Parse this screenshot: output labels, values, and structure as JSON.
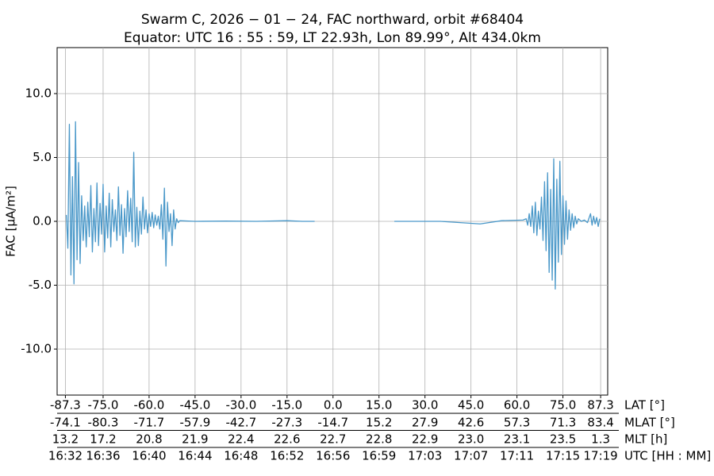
{
  "chart_data": {
    "type": "line",
    "title": "Swarm C, 2026 − 01 − 24, FAC northward, orbit #68404",
    "subtitle": "Equator: UTC 16 : 55 : 59, LT 22.93h, Lon 89.99°, Alt 434.0km",
    "ylabel": "FAC [µA/m²]",
    "xlabel": "LAT [°]",
    "xlim": [
      -90,
      89.6
    ],
    "ylim": [
      -13.6,
      13.6
    ],
    "grid": true,
    "xticks": [
      {
        "value": -87.3,
        "label": "-87.3"
      },
      {
        "value": -75,
        "label": "-75.0"
      },
      {
        "value": -60,
        "label": "-60.0"
      },
      {
        "value": -45,
        "label": "-45.0"
      },
      {
        "value": -30,
        "label": "-30.0"
      },
      {
        "value": -15,
        "label": "-15.0"
      },
      {
        "value": 0,
        "label": "0.0"
      },
      {
        "value": 15,
        "label": "15.0"
      },
      {
        "value": 30,
        "label": "30.0"
      },
      {
        "value": 45,
        "label": "45.0"
      },
      {
        "value": 60,
        "label": "60.0"
      },
      {
        "value": 75,
        "label": "75.0"
      },
      {
        "value": 87.3,
        "label": "87.3"
      }
    ],
    "yticks": [
      {
        "value": -10,
        "label": "-10.0"
      },
      {
        "value": -5,
        "label": "-5.0"
      },
      {
        "value": 0,
        "label": "0.0"
      },
      {
        "value": 5,
        "label": "5.0"
      },
      {
        "value": 10,
        "label": "10.0"
      }
    ],
    "x_rows": [
      {
        "label": "MLAT [°]",
        "ticks": [
          "-74.1",
          "-80.3",
          "-71.7",
          "-57.9",
          "-42.7",
          "-27.3",
          "-14.7",
          "15.2",
          "27.9",
          "42.6",
          "57.3",
          "71.3",
          "83.4"
        ]
      },
      {
        "label": "MLT [h]",
        "ticks": [
          "13.2",
          "17.2",
          "20.8",
          "21.9",
          "22.4",
          "22.6",
          "22.7",
          "22.8",
          "22.9",
          "23.0",
          "23.1",
          "23.5",
          "1.3"
        ]
      },
      {
        "label": "UTC [HH : MM]",
        "ticks": [
          "16:32",
          "16:36",
          "16:40",
          "16:44",
          "16:48",
          "16:52",
          "16:56",
          "16:59",
          "17:03",
          "17:07",
          "17:11",
          "17:15",
          "17:19"
        ]
      }
    ],
    "x": [
      -87.0,
      -86.5,
      -86.0,
      -85.5,
      -85.0,
      -84.5,
      -84.0,
      -83.5,
      -83.0,
      -82.5,
      -82.0,
      -81.5,
      -81.0,
      -80.5,
      -80.0,
      -79.5,
      -79.0,
      -78.5,
      -78.0,
      -77.5,
      -77.0,
      -76.5,
      -76.0,
      -75.5,
      -75.0,
      -74.5,
      -74.0,
      -73.5,
      -73.0,
      -72.5,
      -72.0,
      -71.5,
      -71.0,
      -70.5,
      -70.0,
      -69.5,
      -69.0,
      -68.5,
      -68.0,
      -67.5,
      -67.0,
      -66.5,
      -66.0,
      -65.5,
      -65.0,
      -64.5,
      -64.0,
      -63.5,
      -63.0,
      -62.5,
      -62.0,
      -61.5,
      -61.0,
      -60.5,
      -60.0,
      -59.5,
      -59.0,
      -58.5,
      -58.0,
      -57.5,
      -57.0,
      -56.5,
      -56.0,
      -55.5,
      -55.0,
      -54.5,
      -54.0,
      -53.5,
      -53.0,
      -52.5,
      -52.0,
      -51.5,
      -51.0,
      -50.5,
      -50.0,
      -45,
      -35,
      -25,
      -15,
      -10,
      -6,
      7,
      20,
      35,
      48,
      55,
      62,
      63.0,
      63.5,
      64.0,
      64.5,
      65.0,
      65.5,
      66.0,
      66.5,
      67.0,
      67.5,
      68.0,
      68.5,
      69.0,
      69.5,
      70.0,
      70.5,
      71.0,
      71.5,
      72.0,
      72.5,
      73.0,
      73.5,
      74.0,
      74.5,
      75.0,
      75.5,
      76.0,
      76.5,
      77.0,
      77.5,
      78.0,
      78.5,
      79.0,
      79.5,
      80.0,
      81.0,
      82.0,
      83.0,
      84.0,
      84.5,
      85.0,
      85.5,
      86.0,
      86.5,
      87.0
    ],
    "series": [
      {
        "name": "FAC",
        "color": "#4a98c9",
        "values": [
          0.5,
          -2.1,
          7.6,
          -4.2,
          3.5,
          -4.9,
          7.8,
          -3.0,
          4.6,
          -3.3,
          2.0,
          -1.5,
          1.2,
          -2.0,
          1.5,
          -1.2,
          2.8,
          -2.4,
          1.0,
          -1.6,
          3.0,
          -1.9,
          1.4,
          -1.0,
          2.9,
          -2.4,
          1.2,
          -1.3,
          2.2,
          -2.0,
          1.7,
          -0.8,
          0.9,
          -1.5,
          2.7,
          -1.1,
          1.3,
          -2.5,
          1.0,
          -1.2,
          2.4,
          -0.8,
          1.8,
          -1.6,
          5.4,
          -2.0,
          1.1,
          -1.9,
          0.8,
          -1.0,
          1.9,
          -0.6,
          0.9,
          -0.9,
          0.6,
          -0.4,
          0.7,
          -0.5,
          0.5,
          -0.3,
          0.4,
          -0.6,
          1.3,
          -1.4,
          2.6,
          -3.5,
          1.5,
          -0.8,
          0.6,
          -1.9,
          0.9,
          -0.6,
          0.2,
          -0.1,
          0.05,
          0.0,
          0.02,
          0.0,
          0.05,
          0.0,
          0.0,
          null,
          0.0,
          0.0,
          -0.2,
          0.05,
          0.1,
          0.2,
          -0.3,
          0.6,
          -0.4,
          1.2,
          -0.9,
          1.5,
          -1.1,
          0.8,
          -0.6,
          1.9,
          -1.5,
          3.1,
          -2.3,
          3.8,
          -4.0,
          2.5,
          -4.6,
          4.9,
          -5.3,
          3.3,
          -3.2,
          4.7,
          -2.6,
          2.0,
          -1.8,
          1.6,
          -1.4,
          0.9,
          -0.7,
          0.6,
          -0.5,
          0.4,
          -0.2,
          0.2,
          0.0,
          0.1,
          -0.1,
          0.6,
          -0.3,
          0.4,
          -0.2,
          0.3,
          -0.4,
          0.2
        ]
      }
    ]
  }
}
